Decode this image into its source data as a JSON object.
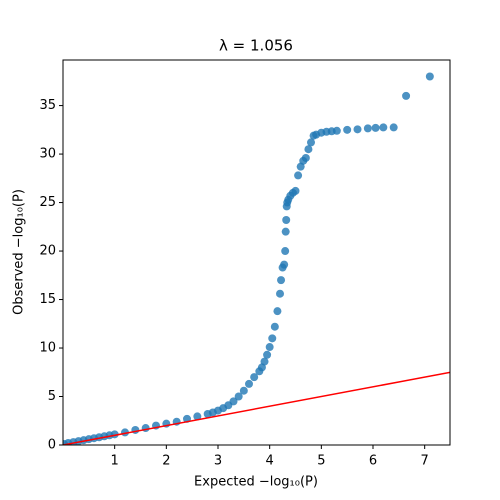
{
  "chart_data": {
    "type": "scatter",
    "title": "λ = 1.056",
    "xlabel": "Expected −log₁₀(P)",
    "ylabel": "Observed −log₁₀(P)",
    "xlim": [
      0,
      7.49
    ],
    "ylim": [
      0,
      39.7
    ],
    "xticks": [
      1,
      2,
      3,
      4,
      5,
      6,
      7
    ],
    "yticks": [
      0,
      5,
      10,
      15,
      20,
      25,
      30,
      35
    ],
    "reference_line": {
      "color": "#ff0000"
    },
    "series": [
      {
        "color": "#1f77b4",
        "x": [
          0.02,
          0.1,
          0.2,
          0.3,
          0.4,
          0.5,
          0.6,
          0.7,
          0.8,
          0.9,
          1.0,
          1.2,
          1.4,
          1.6,
          1.8,
          2.0,
          2.2,
          2.4,
          2.6,
          2.8,
          2.9,
          3.0,
          3.1,
          3.2,
          3.3,
          3.4,
          3.5,
          3.6,
          3.7,
          3.8,
          3.85,
          3.9,
          3.95,
          4.0,
          4.05,
          4.1,
          4.15,
          4.2,
          4.22,
          4.25,
          4.28,
          4.3,
          4.31,
          4.32,
          4.33,
          4.34,
          4.36,
          4.4,
          4.45,
          4.5,
          4.55,
          4.6,
          4.65,
          4.7,
          4.75,
          4.8,
          4.85,
          4.9,
          5.0,
          5.1,
          5.2,
          5.3,
          5.5,
          5.7,
          5.9,
          6.05,
          6.2,
          6.4,
          6.64,
          7.1
        ],
        "values": [
          0.1,
          0.2,
          0.3,
          0.4,
          0.5,
          0.6,
          0.7,
          0.8,
          0.9,
          1.0,
          1.1,
          1.3,
          1.55,
          1.75,
          2.0,
          2.2,
          2.4,
          2.7,
          2.95,
          3.2,
          3.35,
          3.55,
          3.8,
          4.1,
          4.5,
          5.0,
          5.6,
          6.3,
          7.0,
          7.6,
          8.0,
          8.6,
          9.3,
          10.1,
          11.0,
          12.2,
          13.8,
          15.6,
          17.0,
          18.3,
          18.6,
          20.0,
          22.0,
          23.2,
          24.6,
          25.0,
          25.3,
          25.7,
          26.0,
          26.2,
          27.8,
          28.7,
          29.3,
          29.6,
          30.5,
          31.2,
          31.9,
          32.0,
          32.2,
          32.3,
          32.35,
          32.4,
          32.5,
          32.55,
          32.65,
          32.7,
          32.75,
          32.75,
          36.0,
          38.0
        ]
      }
    ]
  }
}
